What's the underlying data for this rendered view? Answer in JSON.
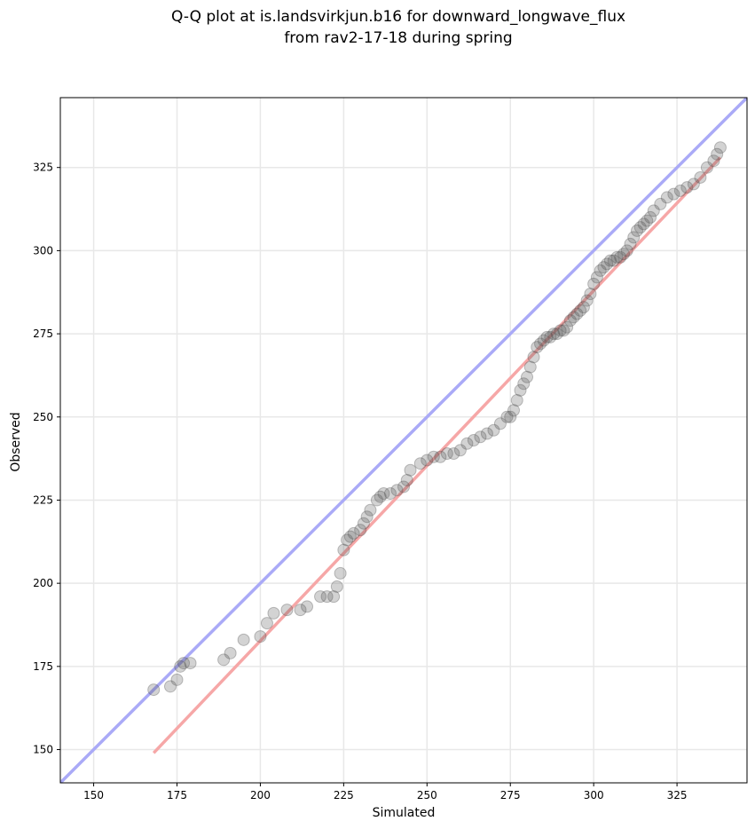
{
  "chart_data": {
    "type": "scatter",
    "title": [
      "Q-Q plot at is.landsvirkjun.b16 for downward_longwave_flux",
      "from rav2-17-18 during spring"
    ],
    "xlabel": "Simulated",
    "ylabel": "Observed",
    "xlim": [
      140,
      346
    ],
    "ylim": [
      140,
      346
    ],
    "xticks": [
      150,
      175,
      200,
      225,
      250,
      275,
      300,
      325
    ],
    "yticks": [
      150,
      175,
      200,
      225,
      250,
      275,
      300,
      325
    ],
    "grid": true,
    "identity_line": {
      "name": "1:1 line",
      "color": "#aaaaf7",
      "x": [
        140,
        346
      ],
      "y": [
        140,
        346
      ]
    },
    "fit_line": {
      "name": "fit",
      "color": "#f6a7a7",
      "x": [
        168,
        338
      ],
      "y": [
        149,
        328
      ]
    },
    "points": {
      "color": "#505050",
      "x": [
        168,
        173,
        175,
        176,
        177,
        179,
        189,
        191,
        195,
        200,
        202,
        204,
        208,
        212,
        214,
        218,
        220,
        222,
        223,
        224,
        225,
        226,
        227,
        228,
        230,
        231,
        232,
        233,
        235,
        236,
        237,
        239,
        241,
        243,
        244,
        245,
        248,
        250,
        252,
        254,
        256,
        258,
        260,
        262,
        264,
        266,
        268,
        270,
        272,
        274,
        275,
        276,
        277,
        278,
        279,
        280,
        281,
        282,
        283,
        284,
        285,
        286,
        287,
        288,
        289,
        290,
        291,
        292,
        293,
        294,
        295,
        296,
        297,
        298,
        299,
        300,
        301,
        302,
        303,
        304,
        305,
        306,
        307,
        308,
        309,
        310,
        311,
        312,
        313,
        314,
        315,
        316,
        317,
        318,
        320,
        322,
        324,
        326,
        328,
        330,
        332,
        334,
        336,
        337,
        338
      ],
      "y": [
        168,
        169,
        171,
        175,
        176,
        176,
        177,
        179,
        183,
        184,
        188,
        191,
        192,
        192,
        193,
        196,
        196,
        196,
        199,
        203,
        210,
        213,
        214,
        215,
        216,
        218,
        220,
        222,
        225,
        226,
        227,
        227,
        228,
        229,
        231,
        234,
        236,
        237,
        238,
        238,
        239,
        239,
        240,
        242,
        243,
        244,
        245,
        246,
        248,
        250,
        250,
        252,
        255,
        258,
        260,
        262,
        265,
        268,
        271,
        272,
        273,
        274,
        274,
        275,
        275,
        276,
        276,
        277,
        279,
        280,
        281,
        282,
        283,
        285,
        287,
        290,
        292,
        294,
        295,
        296,
        297,
        297,
        298,
        298,
        299,
        300,
        302,
        304,
        306,
        307,
        308,
        309,
        310,
        312,
        314,
        316,
        317,
        318,
        319,
        320,
        322,
        325,
        327,
        329,
        331
      ]
    }
  }
}
